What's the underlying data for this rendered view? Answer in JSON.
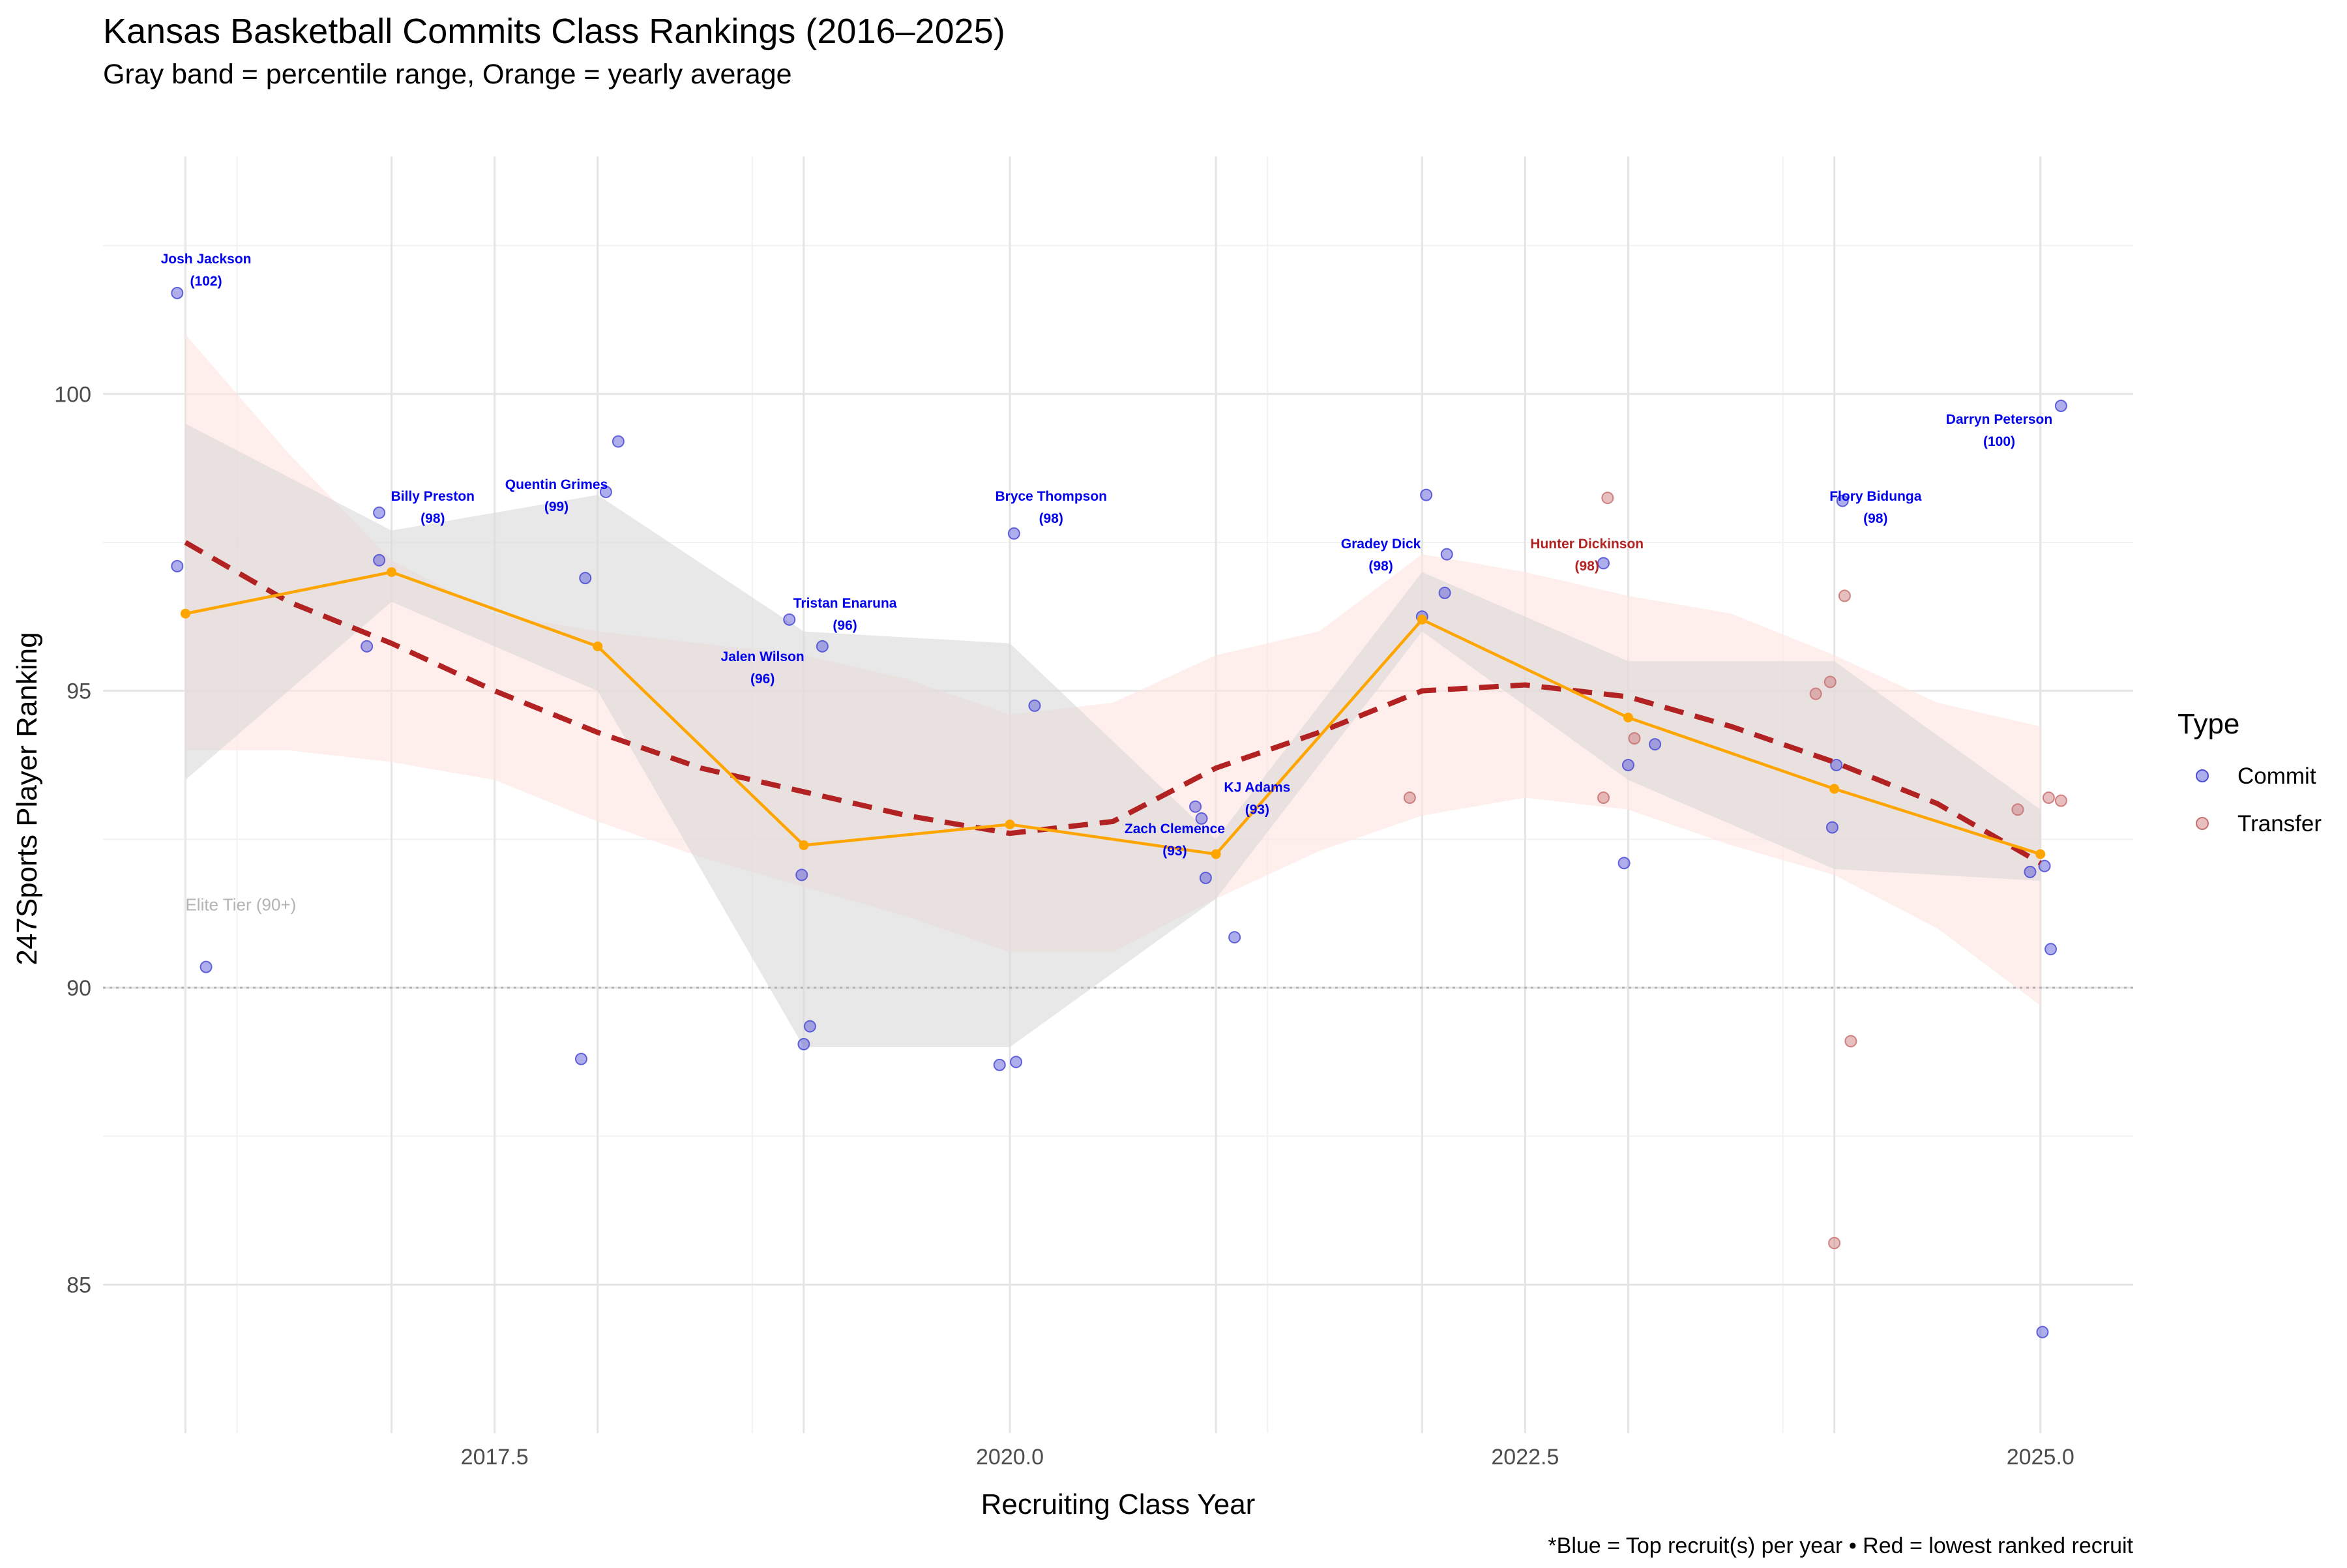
{
  "title": "Kansas Basketball Commits Class Rankings (2016–2025)",
  "subtitle": "Gray band = percentile range, Orange = yearly average",
  "caption": "*Blue = Top recruit(s) per year • Red = lowest ranked recruit",
  "colors": {
    "commit": "#4b4bd6",
    "transfer": "#c97070",
    "average": "#ffa500",
    "trend": "#b22222",
    "gray_band": "#d9d9d9",
    "pink_band": "#fde3e0",
    "top_label": "#0000ee",
    "low_label": "#b22222",
    "grid_major": "#e5e5e5",
    "grid_minor": "#f2f2f2"
  },
  "chart_data": {
    "type": "scatter",
    "xlabel": "Recruiting Class Year",
    "ylabel": "247Sports Player Ranking",
    "xlim": [
      2015.6,
      2025.45
    ],
    "ylim": [
      82.5,
      104.0
    ],
    "x_ticks": [
      2017.5,
      2020.0,
      2022.5,
      2025.0
    ],
    "x_tick_labels": [
      "2017.5",
      "2020.0",
      "2022.5",
      "2025.0"
    ],
    "y_ticks": [
      85,
      90,
      95,
      100
    ],
    "y_tick_labels": [
      "85",
      "90",
      "95",
      "100"
    ],
    "grid": true,
    "legend": {
      "title": "Type",
      "position": "right",
      "entries": [
        "Commit",
        "Transfer"
      ]
    },
    "points": [
      {
        "x": 2015.96,
        "y": 101.7,
        "type": "Commit"
      },
      {
        "x": 2015.96,
        "y": 97.1,
        "type": "Commit"
      },
      {
        "x": 2016.1,
        "y": 90.35,
        "type": "Commit"
      },
      {
        "x": 2016.94,
        "y": 98.0,
        "type": "Commit"
      },
      {
        "x": 2016.94,
        "y": 97.2,
        "type": "Commit"
      },
      {
        "x": 2016.88,
        "y": 95.75,
        "type": "Commit"
      },
      {
        "x": 2018.1,
        "y": 99.2,
        "type": "Commit"
      },
      {
        "x": 2018.04,
        "y": 98.35,
        "type": "Commit"
      },
      {
        "x": 2017.94,
        "y": 96.9,
        "type": "Commit"
      },
      {
        "x": 2017.92,
        "y": 88.8,
        "type": "Commit"
      },
      {
        "x": 2018.93,
        "y": 96.2,
        "type": "Commit"
      },
      {
        "x": 2019.09,
        "y": 95.75,
        "type": "Commit"
      },
      {
        "x": 2018.99,
        "y": 91.9,
        "type": "Commit"
      },
      {
        "x": 2019.03,
        "y": 89.35,
        "type": "Commit"
      },
      {
        "x": 2019.0,
        "y": 89.05,
        "type": "Commit"
      },
      {
        "x": 2020.02,
        "y": 97.65,
        "type": "Commit"
      },
      {
        "x": 2020.12,
        "y": 94.75,
        "type": "Commit"
      },
      {
        "x": 2019.95,
        "y": 88.7,
        "type": "Commit"
      },
      {
        "x": 2020.03,
        "y": 88.75,
        "type": "Commit"
      },
      {
        "x": 2020.9,
        "y": 93.05,
        "type": "Commit"
      },
      {
        "x": 2020.93,
        "y": 92.85,
        "type": "Commit"
      },
      {
        "x": 2020.95,
        "y": 91.85,
        "type": "Commit"
      },
      {
        "x": 2021.09,
        "y": 90.85,
        "type": "Commit"
      },
      {
        "x": 2022.02,
        "y": 98.3,
        "type": "Commit"
      },
      {
        "x": 2022.12,
        "y": 97.3,
        "type": "Commit"
      },
      {
        "x": 2022.11,
        "y": 96.65,
        "type": "Commit"
      },
      {
        "x": 2022.0,
        "y": 96.25,
        "type": "Commit"
      },
      {
        "x": 2021.94,
        "y": 93.2,
        "type": "Transfer"
      },
      {
        "x": 2022.9,
        "y": 98.25,
        "type": "Transfer"
      },
      {
        "x": 2022.88,
        "y": 97.15,
        "type": "Commit"
      },
      {
        "x": 2023.03,
        "y": 94.2,
        "type": "Transfer"
      },
      {
        "x": 2023.13,
        "y": 94.1,
        "type": "Commit"
      },
      {
        "x": 2023.0,
        "y": 93.75,
        "type": "Commit"
      },
      {
        "x": 2022.88,
        "y": 93.2,
        "type": "Transfer"
      },
      {
        "x": 2022.98,
        "y": 92.1,
        "type": "Commit"
      },
      {
        "x": 2024.04,
        "y": 98.2,
        "type": "Commit"
      },
      {
        "x": 2024.05,
        "y": 96.6,
        "type": "Transfer"
      },
      {
        "x": 2023.98,
        "y": 95.15,
        "type": "Transfer"
      },
      {
        "x": 2023.91,
        "y": 94.95,
        "type": "Transfer"
      },
      {
        "x": 2024.01,
        "y": 93.75,
        "type": "Commit"
      },
      {
        "x": 2023.99,
        "y": 92.7,
        "type": "Commit"
      },
      {
        "x": 2024.08,
        "y": 89.1,
        "type": "Transfer"
      },
      {
        "x": 2024.0,
        "y": 85.7,
        "type": "Transfer"
      },
      {
        "x": 2025.1,
        "y": 99.8,
        "type": "Commit"
      },
      {
        "x": 2025.04,
        "y": 93.2,
        "type": "Transfer"
      },
      {
        "x": 2025.1,
        "y": 93.15,
        "type": "Transfer"
      },
      {
        "x": 2024.89,
        "y": 93.0,
        "type": "Transfer"
      },
      {
        "x": 2025.02,
        "y": 92.05,
        "type": "Commit"
      },
      {
        "x": 2024.95,
        "y": 91.95,
        "type": "Commit"
      },
      {
        "x": 2025.05,
        "y": 90.65,
        "type": "Commit"
      },
      {
        "x": 2025.01,
        "y": 84.2,
        "type": "Commit"
      }
    ],
    "yearly_average": {
      "x": [
        2016,
        2017,
        2018,
        2019,
        2020,
        2021,
        2022,
        2023,
        2024,
        2025
      ],
      "y": [
        96.3,
        97.0,
        95.75,
        92.4,
        92.75,
        92.25,
        96.2,
        94.55,
        93.35,
        92.25
      ]
    },
    "trend": {
      "x": [
        2016,
        2016.5,
        2017,
        2017.5,
        2018,
        2018.5,
        2019,
        2019.5,
        2020,
        2020.5,
        2021,
        2021.5,
        2022,
        2022.5,
        2023,
        2023.5,
        2024,
        2024.5,
        2025
      ],
      "y": [
        97.5,
        96.5,
        95.8,
        95.0,
        94.3,
        93.7,
        93.3,
        92.9,
        92.6,
        92.8,
        93.7,
        94.3,
        95.0,
        95.1,
        94.9,
        94.4,
        93.8,
        93.1,
        92.1
      ]
    },
    "percentile_band": {
      "x": [
        2016,
        2017,
        2018,
        2019,
        2020,
        2021,
        2022,
        2023,
        2024,
        2025
      ],
      "lower": [
        93.5,
        96.5,
        95.0,
        89.0,
        89.0,
        91.5,
        96.0,
        93.5,
        92.0,
        91.8
      ],
      "upper": [
        99.5,
        97.7,
        98.3,
        96.0,
        95.8,
        92.5,
        97.0,
        95.5,
        95.5,
        93.0
      ]
    },
    "trend_confidence_band": {
      "x": [
        2016,
        2016.5,
        2017,
        2017.5,
        2018,
        2018.5,
        2019,
        2019.5,
        2020,
        2020.5,
        2021,
        2021.5,
        2022,
        2022.5,
        2023,
        2023.5,
        2024,
        2024.5,
        2025
      ],
      "lower": [
        94.0,
        94.0,
        93.8,
        93.5,
        92.8,
        92.2,
        91.7,
        91.2,
        90.6,
        90.6,
        91.5,
        92.3,
        92.9,
        93.2,
        93.0,
        92.4,
        91.9,
        91.0,
        89.7
      ],
      "upper": [
        101.0,
        99.0,
        97.2,
        96.3,
        96.0,
        95.8,
        95.6,
        95.2,
        94.6,
        94.8,
        95.6,
        96.0,
        97.3,
        97.0,
        96.6,
        96.3,
        95.6,
        94.8,
        94.4
      ]
    },
    "reference_line": {
      "y": 90,
      "label": "Elite Tier (90+)"
    },
    "annotations": [
      {
        "name": "Josh Jackson",
        "value": "(102)",
        "x": 2016.1,
        "y": 102.2,
        "kind": "top"
      },
      {
        "name": "Billy Preston",
        "value": "(98)",
        "x": 2017.2,
        "y": 98.2,
        "kind": "top"
      },
      {
        "name": "Quentin Grimes",
        "value": "(99)",
        "x": 2017.8,
        "y": 98.4,
        "kind": "top"
      },
      {
        "name": "Tristan Enaruna",
        "value": "(96)",
        "x": 2019.2,
        "y": 96.4,
        "kind": "top"
      },
      {
        "name": "Jalen Wilson",
        "value": "(96)",
        "x": 2018.8,
        "y": 95.5,
        "kind": "top"
      },
      {
        "name": "Bryce Thompson",
        "value": "(98)",
        "x": 2020.2,
        "y": 98.2,
        "kind": "top"
      },
      {
        "name": "KJ Adams",
        "value": "(93)",
        "x": 2021.2,
        "y": 93.3,
        "kind": "top"
      },
      {
        "name": "Zach Clemence",
        "value": "(93)",
        "x": 2020.8,
        "y": 92.6,
        "kind": "top"
      },
      {
        "name": "Gradey Dick",
        "value": "(98)",
        "x": 2021.8,
        "y": 97.4,
        "kind": "top"
      },
      {
        "name": "Hunter Dickinson",
        "value": "(98)",
        "x": 2022.8,
        "y": 97.4,
        "kind": "low"
      },
      {
        "name": "Flory Bidunga",
        "value": "(98)",
        "x": 2024.2,
        "y": 98.2,
        "kind": "top"
      },
      {
        "name": "Darryn Peterson",
        "value": "(100)",
        "x": 2024.8,
        "y": 99.5,
        "kind": "top"
      }
    ]
  }
}
